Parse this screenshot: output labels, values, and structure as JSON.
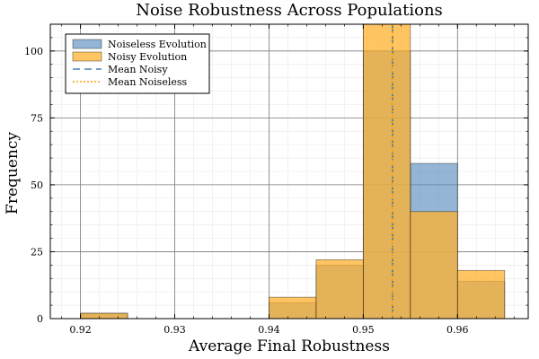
{
  "chart_data": {
    "type": "histogram",
    "title": "Noise Robustness Across Populations",
    "xlabel": "Average Final Robustness",
    "ylabel": "Frequency",
    "xlim": [
      0.9168,
      0.9675
    ],
    "ylim": [
      0,
      110
    ],
    "xticks": [
      0.92,
      0.93,
      0.94,
      0.95,
      0.96
    ],
    "xtick_labels": [
      "0.92",
      "0.93",
      "0.94",
      "0.95",
      "0.96"
    ],
    "yticks": [
      0,
      25,
      50,
      75,
      100
    ],
    "ytick_labels": [
      "0",
      "25",
      "50",
      "75",
      "100"
    ],
    "bin_edges": [
      0.92,
      0.925,
      0.93,
      0.935,
      0.94,
      0.945,
      0.95,
      0.955,
      0.96,
      0.965
    ],
    "grid": true,
    "legend_position": "top-left",
    "series": [
      {
        "name": "Noiseless Evolution",
        "kind": "bar",
        "color": "#5b8dbf",
        "opacity": 0.65,
        "counts": [
          2,
          0,
          0,
          0,
          6,
          20,
          100,
          58,
          14
        ]
      },
      {
        "name": "Noisy Evolution",
        "kind": "bar",
        "color": "#ffb22e",
        "opacity": 0.75,
        "counts": [
          2,
          0,
          0,
          0,
          8,
          22,
          110,
          40,
          18
        ]
      },
      {
        "name": "Mean Noisy",
        "kind": "vline",
        "color": "#4a7fb0",
        "style": "dashed",
        "x": 0.9531
      },
      {
        "name": "Mean Noiseless",
        "kind": "vline",
        "color": "#f5a000",
        "style": "dotted",
        "x": 0.9531
      }
    ]
  }
}
